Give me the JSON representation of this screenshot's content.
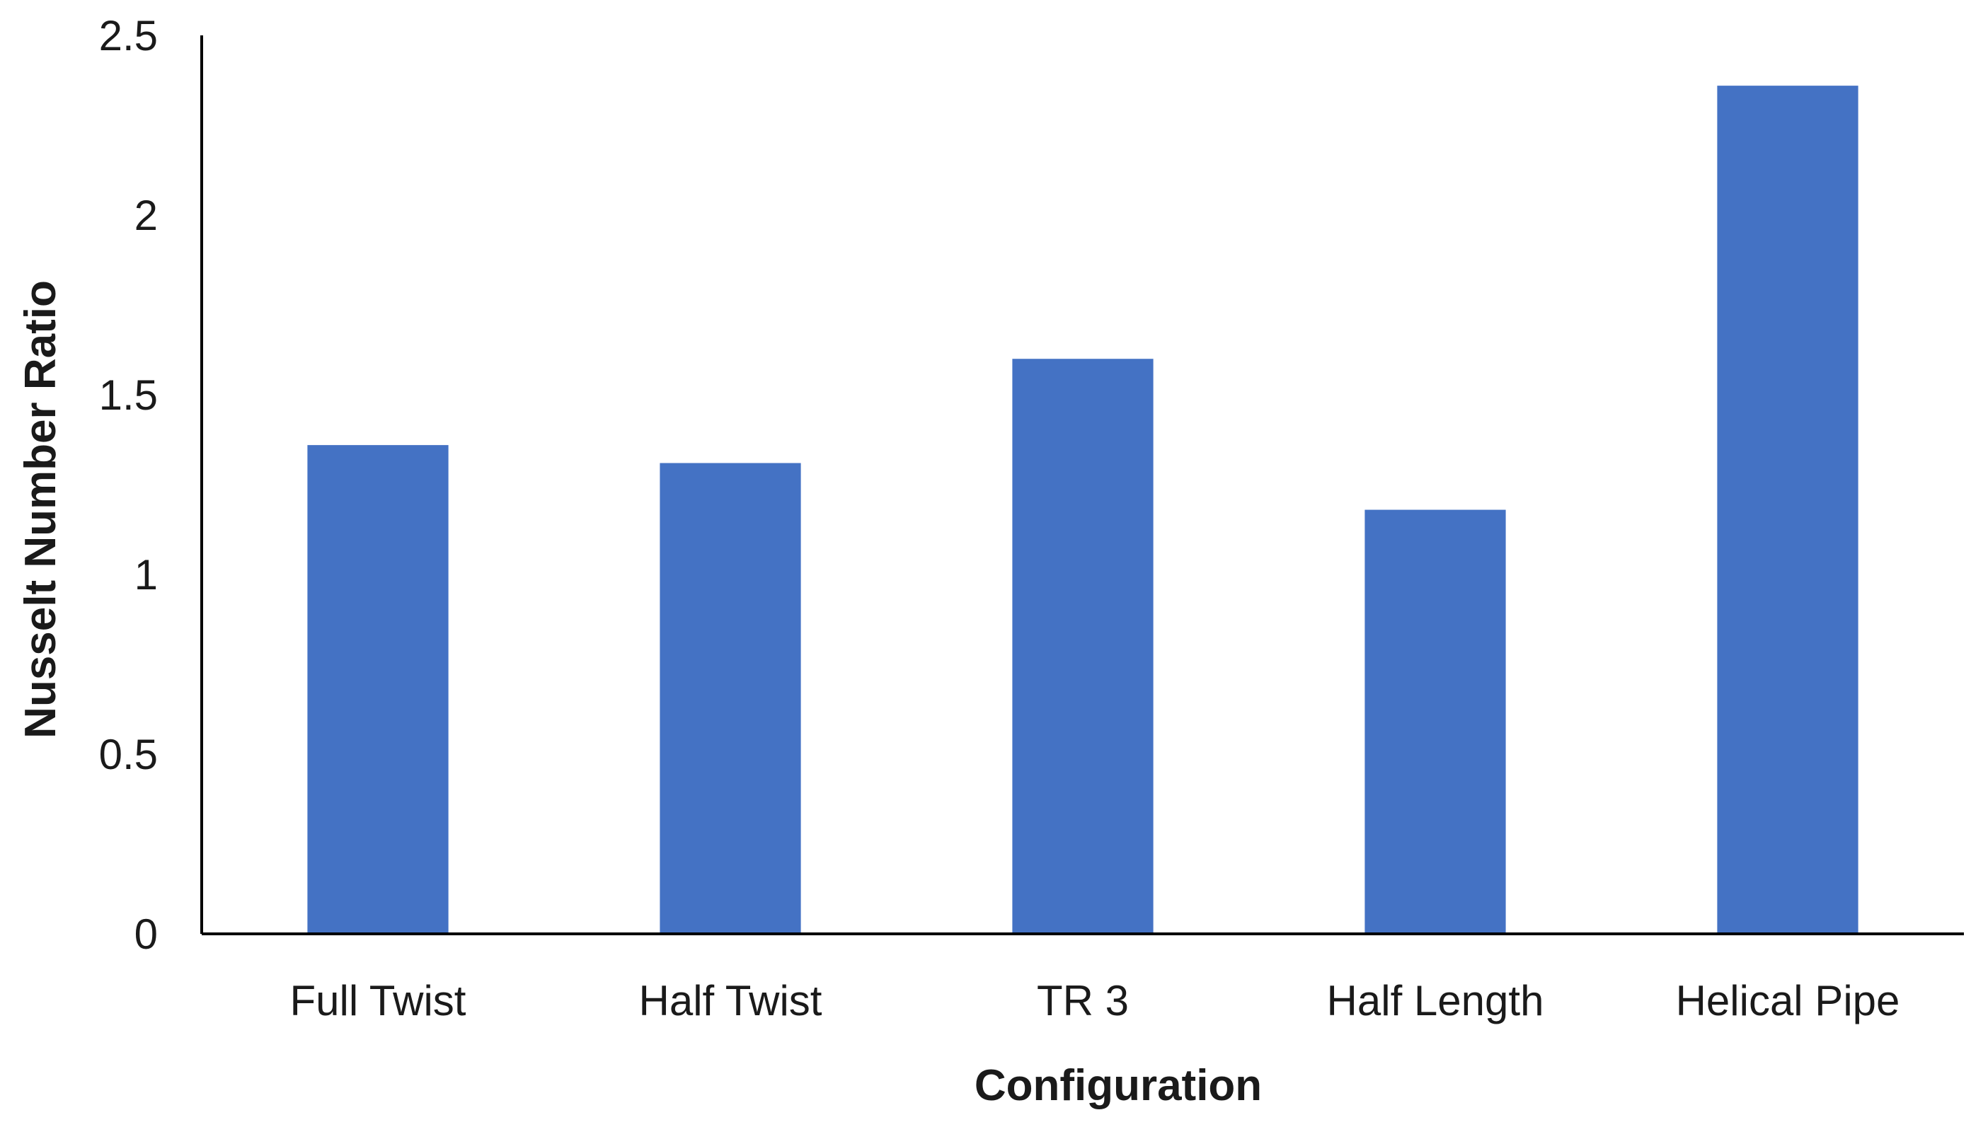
{
  "chart_data": {
    "type": "bar",
    "categories": [
      "Full Twist",
      "Half Twist",
      "TR 3",
      "Half Length",
      "Helical Pipe"
    ],
    "values": [
      1.36,
      1.31,
      1.6,
      1.18,
      2.36
    ],
    "xlabel": "Configuration",
    "ylabel": "Nusselt Number Ratio",
    "ylim": [
      0,
      2.5
    ],
    "yticks": [
      "0",
      "0.5",
      "1",
      "1.5",
      "2",
      "2.5"
    ],
    "grid": false,
    "legend": "none",
    "colors": {
      "bar": "#4472C4",
      "axis": "#000000"
    }
  }
}
